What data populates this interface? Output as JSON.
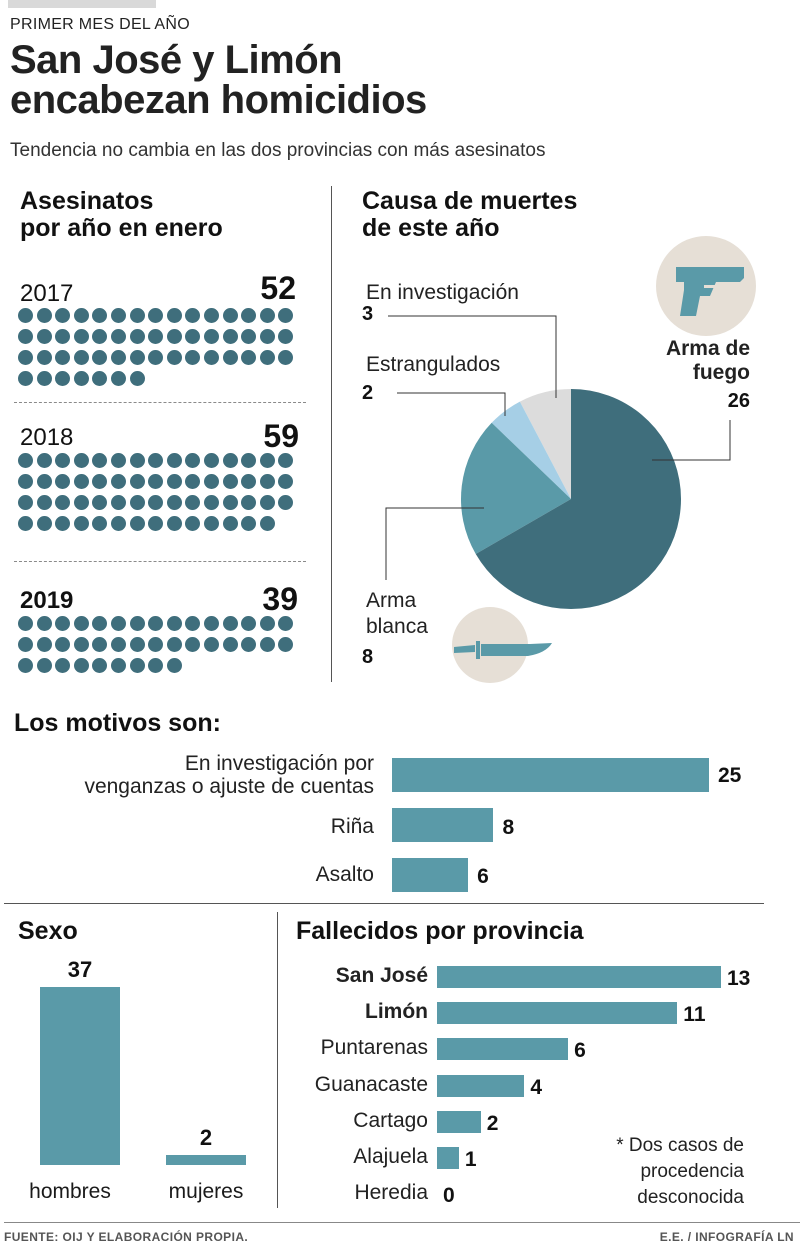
{
  "header": {
    "kicker": "PRIMER MES DEL AÑO",
    "title_line1": "San José y Limón",
    "title_line2": "encabezan homicidios",
    "subtitle": "Tendencia no cambia en las dos provincias con más asesinatos"
  },
  "footer": {
    "source": "FUENTE: OIJ Y ELABORACIÓN PROPIA.",
    "credit": "E.E. / INFOGRAFÍA LN"
  },
  "icons": {
    "gun": "pistol-icon",
    "knife": "knife-icon"
  },
  "colors": {
    "dot": "#3f6e7c",
    "bar": "#5a9aa8",
    "pie_firearm": "#3f6e7c",
    "pie_knife": "#5a9aa8",
    "pie_strangled": "#a6cfe6",
    "pie_investigation": "#dcdcdc",
    "icon_bg": "#e6dfd6"
  },
  "chart_data": [
    {
      "type": "pictogram",
      "title_line1": "Asesinatos",
      "title_line2": "por año en enero",
      "series": [
        {
          "year": "2017",
          "value": 52
        },
        {
          "year": "2018",
          "value": 59
        },
        {
          "year": "2019",
          "value": 39
        }
      ]
    },
    {
      "type": "pie",
      "title_line1": "Causa de muertes",
      "title_line2": "de este año",
      "slices": [
        {
          "label": "Arma de fuego",
          "label_line1": "Arma de",
          "label_line2": "fuego",
          "value": 26
        },
        {
          "label": "Arma blanca",
          "label_line1": "Arma",
          "label_line2": "blanca",
          "value": 8
        },
        {
          "label": "Estrangulados",
          "value": 2
        },
        {
          "label": "En investigación",
          "value": 3
        }
      ]
    },
    {
      "type": "bar",
      "title": "Los motivos son:",
      "categories": [
        {
          "line1": "En investigación por",
          "line2": "venganzas o ajuste de cuentas"
        },
        {
          "line1": "Riña",
          "line2": ""
        },
        {
          "line1": "Asalto",
          "line2": ""
        }
      ],
      "values": [
        25,
        8,
        6
      ]
    },
    {
      "type": "bar",
      "title": "Sexo",
      "categories": [
        "hombres",
        "mujeres"
      ],
      "values": [
        37,
        2
      ]
    },
    {
      "type": "bar",
      "title": "Fallecidos por provincia",
      "categories": [
        "San José",
        "Limón",
        "Puntarenas",
        "Guanacaste",
        "Cartago",
        "Alajuela",
        "Heredia"
      ],
      "values": [
        13,
        11,
        6,
        4,
        2,
        1,
        0
      ],
      "note_line1": "* Dos casos de",
      "note_line2": "procedencia",
      "note_line3": "desconocida"
    }
  ]
}
